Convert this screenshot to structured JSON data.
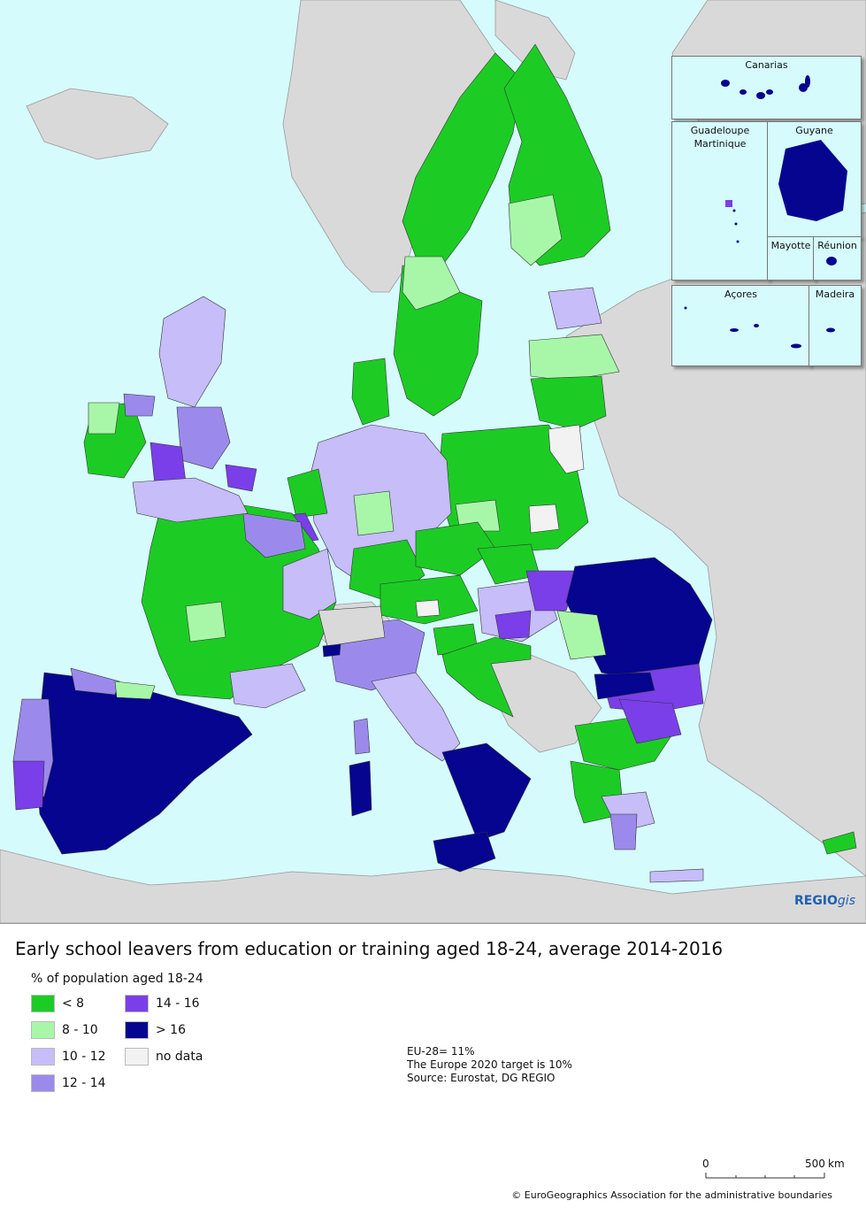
{
  "map": {
    "colors": {
      "sea": "#d6fbfd",
      "non_eu_land": "#d9d9d9",
      "lt8": "#1ccc24",
      "8_10": "#a8f7a8",
      "10_12": "#c6bdf9",
      "12_14": "#9b8aec",
      "14_16": "#7a3fe8",
      "gt16": "#05058f",
      "no_data": "#f2f2f2"
    },
    "insets": {
      "canarias": "Canarias",
      "guadeloupe": "Guadeloupe",
      "martinique": "Martinique",
      "guyane": "Guyane",
      "mayotte": "Mayotte",
      "reunion": "Réunion",
      "acores": "Açores",
      "madeira": "Madeira"
    },
    "brand_bold": "REGIO",
    "brand_italic": "gis"
  },
  "legend": {
    "title": "Early school leavers from education or training aged 18-24, average 2014-2016",
    "subtitle": "% of population aged 18-24",
    "items": [
      {
        "label": "< 8",
        "color": "#1ccc24"
      },
      {
        "label": "8 - 10",
        "color": "#a8f7a8"
      },
      {
        "label": "10 - 12",
        "color": "#c6bdf9"
      },
      {
        "label": "12 - 14",
        "color": "#9b8aec"
      },
      {
        "label": "14 - 16",
        "color": "#7a3fe8"
      },
      {
        "label": "> 16",
        "color": "#05058f"
      },
      {
        "label": "no data",
        "color": "#f2f2f2"
      }
    ]
  },
  "notes": {
    "eu_average": "EU-28= 11%",
    "target": "The Europe 2020 target is 10%",
    "source": "Source: Eurostat, DG REGIO"
  },
  "scale": {
    "start": "0",
    "end": "500",
    "unit": "km"
  },
  "copyright": "© EuroGeographics Association for the administrative boundaries"
}
